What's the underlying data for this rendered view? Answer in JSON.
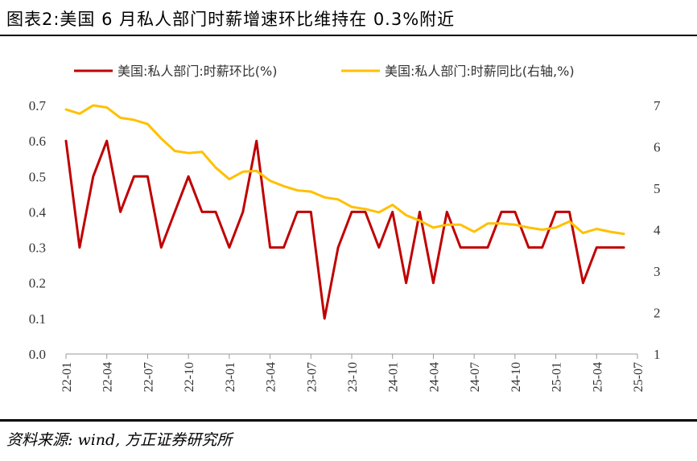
{
  "header": {
    "title": "图表2:美国 6 月私人部门时薪增速环比维持在 0.3%附近"
  },
  "footer": {
    "source": "资料来源: wind, 方正证券研究所"
  },
  "chart_data": {
    "type": "line",
    "x": [
      "22-01",
      "22-02",
      "22-03",
      "22-04",
      "22-05",
      "22-06",
      "22-07",
      "22-08",
      "22-09",
      "22-10",
      "22-11",
      "22-12",
      "23-01",
      "23-02",
      "23-03",
      "23-04",
      "23-05",
      "23-06",
      "23-07",
      "23-08",
      "23-09",
      "23-10",
      "23-11",
      "23-12",
      "24-01",
      "24-02",
      "24-03",
      "24-04",
      "24-05",
      "24-06",
      "24-07",
      "24-08",
      "24-09",
      "24-10",
      "24-11",
      "24-12",
      "25-01",
      "25-02",
      "25-03",
      "25-04",
      "25-05",
      "25-06"
    ],
    "xticks": [
      "22-01",
      "22-04",
      "22-07",
      "22-10",
      "23-01",
      "23-04",
      "23-07",
      "23-10",
      "24-01",
      "24-04",
      "24-07",
      "24-10",
      "25-01",
      "25-04",
      "25-07"
    ],
    "series": [
      {
        "name": "美国:私人部门:时薪环比(%)",
        "axis": "left",
        "color": "#c00000",
        "values": [
          0.6,
          0.3,
          0.5,
          0.6,
          0.4,
          0.5,
          0.5,
          0.3,
          0.4,
          0.5,
          0.4,
          0.4,
          0.3,
          0.4,
          0.6,
          0.3,
          0.3,
          0.4,
          0.4,
          0.1,
          0.3,
          0.4,
          0.4,
          0.3,
          0.4,
          0.2,
          0.4,
          0.2,
          0.4,
          0.3,
          0.3,
          0.3,
          0.4,
          0.4,
          0.3,
          0.3,
          0.4,
          0.4,
          0.2,
          0.3,
          0.3,
          0.3
        ]
      },
      {
        "name": "美国:私人部门:时薪同比(右轴,%)",
        "axis": "right",
        "color": "#ffc000",
        "values": [
          6.9,
          6.8,
          7.0,
          6.95,
          6.7,
          6.65,
          6.55,
          6.2,
          5.9,
          5.85,
          5.88,
          5.5,
          5.22,
          5.4,
          5.42,
          5.18,
          5.05,
          4.95,
          4.92,
          4.78,
          4.73,
          4.55,
          4.5,
          4.42,
          4.6,
          4.35,
          4.22,
          4.05,
          4.12,
          4.12,
          3.95,
          4.15,
          4.15,
          4.12,
          4.05,
          4.0,
          4.05,
          4.2,
          3.92,
          4.02,
          3.95,
          3.9
        ]
      }
    ],
    "ylim_left": [
      0,
      0.7
    ],
    "yticks_left": [
      "0.0",
      "0.1",
      "0.2",
      "0.3",
      "0.4",
      "0.5",
      "0.6",
      "0.7"
    ],
    "ylim_right": [
      1,
      7
    ],
    "yticks_right": [
      "1",
      "2",
      "3",
      "4",
      "5",
      "6",
      "7"
    ],
    "grid": false,
    "legend": "top"
  }
}
